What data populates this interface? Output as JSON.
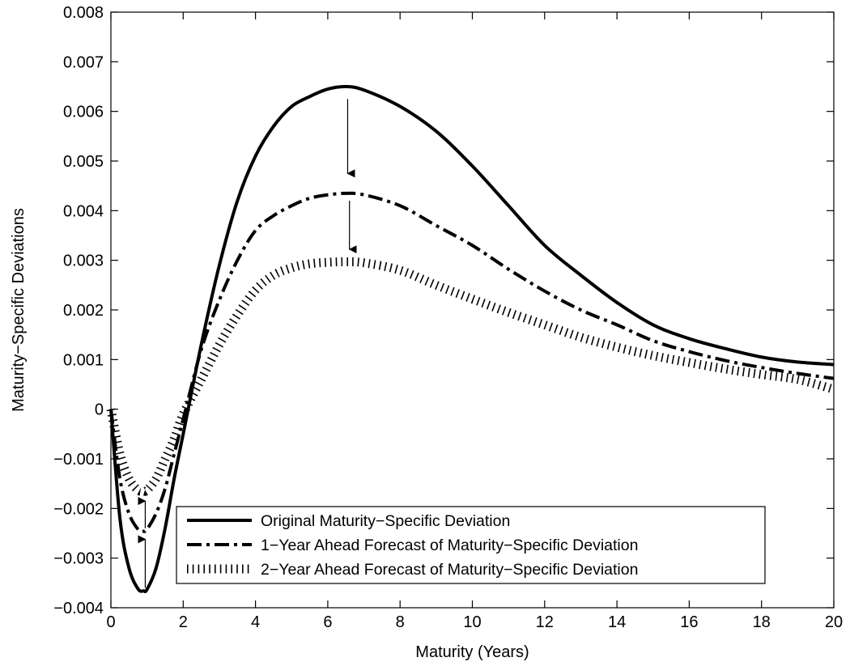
{
  "chart_data": {
    "type": "line",
    "title": "",
    "xlabel": "Maturity (Years)",
    "ylabel": "Maturity−Specific Deviations",
    "xlim": [
      0,
      20
    ],
    "ylim": [
      -0.004,
      0.008
    ],
    "x_ticks": [
      "0",
      "2",
      "4",
      "6",
      "8",
      "10",
      "12",
      "14",
      "16",
      "18",
      "20"
    ],
    "y_ticks": [
      "−0.004",
      "−0.003",
      "−0.002",
      "−0.001",
      "0",
      "0.001",
      "0.002",
      "0.003",
      "0.004",
      "0.005",
      "0.006",
      "0.007",
      "0.008"
    ],
    "grid": false,
    "legend_position": "lower-center",
    "series": [
      {
        "name": "Original Maturity−Specific Deviation",
        "style": "solid",
        "color": "#000000",
        "x": [
          0,
          0.25,
          0.5,
          0.75,
          0.9,
          1.0,
          1.25,
          1.5,
          1.75,
          2.0,
          2.5,
          3.0,
          3.5,
          4.0,
          4.5,
          5.0,
          5.5,
          6.0,
          6.5,
          7.0,
          8.0,
          9.0,
          10.0,
          11.0,
          12.0,
          13.0,
          14.0,
          15.0,
          16.0,
          17.0,
          18.0,
          19.0,
          20.0
        ],
        "y": [
          0,
          -0.0022,
          -0.0032,
          -0.00362,
          -0.00366,
          -0.00363,
          -0.0032,
          -0.0024,
          -0.0014,
          -0.0005,
          0.0013,
          0.0029,
          0.0042,
          0.0051,
          0.0057,
          0.0061,
          0.0063,
          0.00645,
          0.0065,
          0.00643,
          0.0061,
          0.0056,
          0.0049,
          0.0041,
          0.0033,
          0.0027,
          0.00215,
          0.0017,
          0.00142,
          0.00122,
          0.00105,
          0.00095,
          0.0009
        ]
      },
      {
        "name": "1−Year Ahead Forecast of Maturity−Specific Deviation",
        "style": "dash-dot",
        "color": "#000000",
        "x": [
          0,
          0.25,
          0.5,
          0.75,
          0.9,
          1.0,
          1.25,
          1.5,
          1.75,
          2.0,
          2.5,
          3.0,
          3.5,
          4.0,
          4.5,
          5.0,
          5.5,
          6.0,
          6.5,
          7.0,
          8.0,
          9.0,
          10.0,
          11.0,
          12.0,
          13.0,
          14.0,
          15.0,
          16.0,
          17.0,
          18.0,
          19.0,
          20.0
        ],
        "y": [
          0,
          -0.0014,
          -0.0021,
          -0.00242,
          -0.00246,
          -0.00242,
          -0.0021,
          -0.0016,
          -0.0009,
          -0.0002,
          0.0012,
          0.0022,
          0.003,
          0.0036,
          0.0039,
          0.0041,
          0.00425,
          0.00432,
          0.00435,
          0.00432,
          0.0041,
          0.0037,
          0.0033,
          0.00282,
          0.00238,
          0.002,
          0.0017,
          0.00138,
          0.00116,
          0.00098,
          0.00084,
          0.00072,
          0.00062
        ]
      },
      {
        "name": "2−Year Ahead Forecast of Maturity−Specific Deviation",
        "style": "dotted",
        "color": "#000000",
        "x": [
          0,
          0.25,
          0.5,
          0.75,
          0.9,
          1.0,
          1.25,
          1.5,
          1.75,
          2.0,
          2.5,
          3.0,
          3.5,
          4.0,
          4.5,
          5.0,
          5.5,
          6.0,
          6.5,
          7.0,
          8.0,
          9.0,
          10.0,
          11.0,
          12.0,
          13.0,
          14.0,
          15.0,
          16.0,
          17.0,
          18.0,
          19.0,
          20.0
        ],
        "y": [
          0,
          -0.0009,
          -0.0014,
          -0.00163,
          -0.00165,
          -0.00163,
          -0.0014,
          -0.001,
          -0.0006,
          -0.0001,
          0.0006,
          0.0013,
          0.0019,
          0.0024,
          0.0027,
          0.00285,
          0.00293,
          0.00296,
          0.00297,
          0.00295,
          0.0028,
          0.0025,
          0.00222,
          0.00195,
          0.0017,
          0.00145,
          0.00125,
          0.00108,
          0.00094,
          0.00081,
          0.0007,
          0.0006,
          0.0004
        ]
      }
    ],
    "annotations": [
      {
        "type": "arrow",
        "from": [
          6.55,
          0.00625
        ],
        "to": [
          6.55,
          0.00475
        ]
      },
      {
        "type": "arrow",
        "from": [
          6.6,
          0.0042
        ],
        "to": [
          6.6,
          0.00322
        ]
      },
      {
        "type": "arrow",
        "from": [
          0.95,
          -0.0036
        ],
        "to": [
          0.95,
          -0.00262
        ]
      },
      {
        "type": "arrow",
        "from": [
          0.95,
          -0.0024
        ],
        "to": [
          0.95,
          -0.00185
        ]
      }
    ]
  }
}
